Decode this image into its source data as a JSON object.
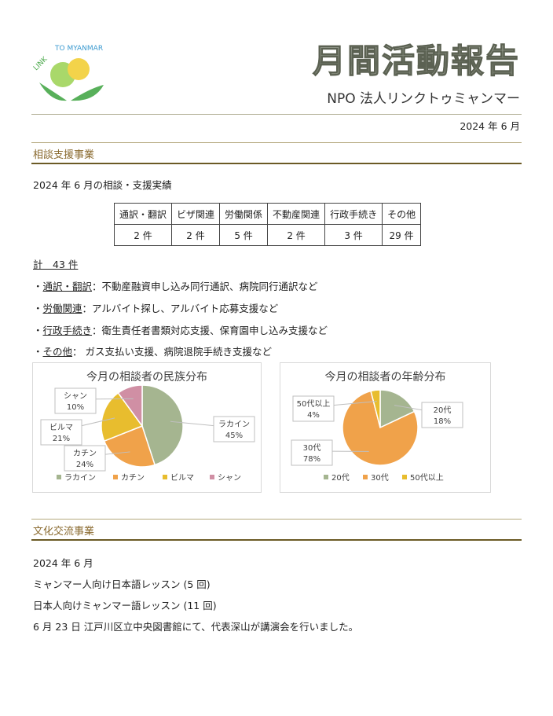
{
  "header": {
    "logo_text": "LINK TO MYANMAR",
    "title": "月間活動報告",
    "subtitle": "NPO 法人リンクトゥミャンマー",
    "date": "2024 年 6 月"
  },
  "section1": {
    "heading": "相談支援事業",
    "intro": "2024 年 6 月の相談・支援実績",
    "table": {
      "headers": [
        "通訳・翻訳",
        "ビザ関連",
        "労働関係",
        "不動産関連",
        "行政手続き",
        "その他"
      ],
      "values": [
        "2 件",
        "2 件",
        "5 件",
        "2 件",
        "3 件",
        "29 件"
      ]
    },
    "total": "計　43 件",
    "details": [
      {
        "term": "通訳・翻訳",
        "text": "：不動産融資申し込み同行通訳、病院同行通訳など"
      },
      {
        "term": "労働関連",
        "text": "：アルバイト探し、アルバイト応募支援など"
      },
      {
        "term": "行政手続き",
        "text": "：衛生責任者書類対応支援、保育園申し込み支援など"
      },
      {
        "term": "その他",
        "text": "： ガス支払い支援、病院退院手続き支援など"
      }
    ]
  },
  "chart_data": [
    {
      "type": "pie",
      "title": "今月の相談者の民族分布",
      "categories": [
        "ラカイン",
        "カチン",
        "ビルマ",
        "シャン"
      ],
      "values": [
        45,
        24,
        21,
        10
      ],
      "unit": "%",
      "colors": [
        "#a5b590",
        "#f0a24a",
        "#e8bd2e",
        "#d08fa4"
      ],
      "legend": "bottom"
    },
    {
      "type": "pie",
      "title": "今月の相談者の年齢分布",
      "categories": [
        "20代",
        "30代",
        "50代以上"
      ],
      "values": [
        18,
        78,
        4
      ],
      "unit": "%",
      "colors": [
        "#a5b590",
        "#f0a24a",
        "#e8bd2e"
      ],
      "legend": "bottom"
    }
  ],
  "section2": {
    "heading": "文化交流事業",
    "lines": [
      "2024 年 6 月",
      "ミャンマー人向け日本語レッスン (5 回)",
      "日本人向けミャンマー語レッスン (11 回)",
      "6 月 23 日 江戸川区立中央図書館にて、代表深山が講演会を行いました。"
    ]
  }
}
